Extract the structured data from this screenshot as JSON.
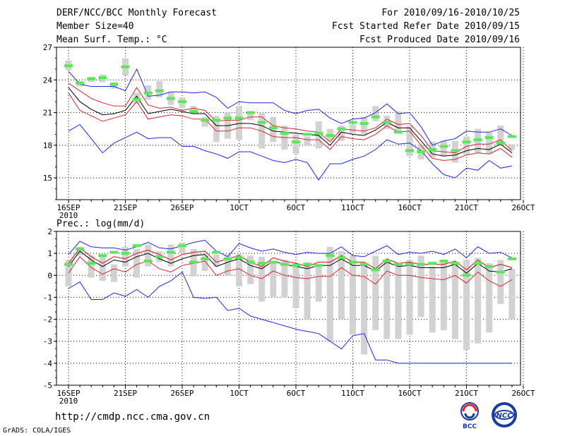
{
  "header": {
    "title": "DERF/NCC/BCC Monthly Forecast",
    "member": "Member Size=40",
    "var_top": "Mean Surf. Temp.: °C",
    "period": "For 2010/09/16-2010/10/25",
    "refer": "Fcst Started Refer Date 2010/09/15",
    "produced": "Fcst Produced Date 2010/09/16"
  },
  "footer": {
    "url": "http://cmdp.ncc.cma.gov.cn",
    "credit": "GrADS: COLA/IGES",
    "logo_bcc": "BCC",
    "logo_ncc": "NCC"
  },
  "chart_data": [
    {
      "type": "line",
      "title": "Mean Surf. Temp.: °C",
      "xlabel": "",
      "ylabel": "°C",
      "ylim": [
        13,
        27
      ],
      "yticks": [
        15,
        18,
        21,
        24,
        27
      ],
      "x_tick_labels": [
        "16SEP",
        "21SEP",
        "26SEP",
        "1OCT",
        "6OCT",
        "11OCT",
        "16OCT",
        "21OCT",
        "26OCT"
      ],
      "x_sub_label": "2010",
      "days": 40,
      "series": [
        {
          "name": "max",
          "color": "#1c28e6",
          "values": [
            24.8,
            23.6,
            23.4,
            23.4,
            23.4,
            23.0,
            25.0,
            22.5,
            22.6,
            22.9,
            22.9,
            22.8,
            22.9,
            22.4,
            21.4,
            22.0,
            21.9,
            21.9,
            21.9,
            21.2,
            20.9,
            21.2,
            21.3,
            20.5,
            20.0,
            20.4,
            20.5,
            21.0,
            21.8,
            20.9,
            21.0,
            19.7,
            18.0,
            18.4,
            18.6,
            19.3,
            19.2,
            19.2,
            19.5,
            18.9
          ]
        },
        {
          "name": "q75",
          "color": "#d8262a",
          "values": [
            23.7,
            23.0,
            22.3,
            21.9,
            21.6,
            21.6,
            23.3,
            21.7,
            21.4,
            21.5,
            21.2,
            21.4,
            21.2,
            20.2,
            20.3,
            20.3,
            20.6,
            20.6,
            19.8,
            19.6,
            19.5,
            19.3,
            19.2,
            18.3,
            19.5,
            19.4,
            19.3,
            19.6,
            20.4,
            19.9,
            20.0,
            18.9,
            17.5,
            17.4,
            17.3,
            17.9,
            18.1,
            18.1,
            18.5,
            17.5
          ]
        },
        {
          "name": "mean",
          "color": "#000000",
          "values": [
            23.3,
            22.0,
            21.3,
            20.8,
            20.9,
            21.2,
            22.5,
            20.9,
            21.1,
            21.3,
            21.1,
            20.9,
            20.9,
            19.8,
            19.8,
            20.0,
            20.0,
            19.8,
            19.3,
            19.2,
            19.1,
            19.0,
            18.9,
            18.0,
            19.2,
            19.0,
            18.9,
            19.4,
            20.1,
            19.6,
            19.6,
            18.4,
            17.2,
            17.0,
            17.1,
            17.5,
            17.7,
            17.6,
            18.1,
            17.3
          ]
        },
        {
          "name": "q25",
          "color": "#d8262a",
          "values": [
            22.8,
            21.2,
            20.7,
            20.2,
            20.5,
            20.8,
            22.0,
            20.4,
            20.6,
            20.8,
            20.7,
            20.4,
            20.4,
            19.3,
            19.3,
            19.6,
            19.6,
            19.3,
            18.8,
            18.7,
            18.7,
            18.5,
            18.5,
            17.6,
            18.8,
            18.6,
            18.5,
            19.0,
            19.8,
            19.2,
            19.3,
            18.0,
            16.8,
            16.6,
            16.7,
            17.1,
            17.3,
            17.2,
            17.7,
            16.9
          ]
        },
        {
          "name": "min",
          "color": "#1c28e6",
          "values": [
            19.3,
            19.9,
            18.6,
            17.3,
            18.2,
            18.7,
            19.2,
            18.6,
            18.7,
            18.7,
            17.9,
            17.9,
            17.5,
            17.2,
            16.8,
            17.4,
            17.4,
            17.0,
            16.6,
            16.4,
            16.7,
            16.4,
            14.8,
            16.3,
            16.3,
            16.7,
            17.0,
            17.6,
            18.5,
            18.1,
            18.2,
            17.5,
            16.3,
            15.3,
            15.0,
            15.9,
            15.7,
            16.6,
            15.9,
            16.1
          ]
        }
      ],
      "obs_bars": [
        [
          24.9,
          25.8
        ],
        [
          23.4,
          23.9
        ],
        [
          23.8,
          24.3
        ],
        [
          23.8,
          24.5
        ],
        [
          23.2,
          23.8
        ],
        [
          24.4,
          26.0
        ],
        [
          21.8,
          22.8
        ],
        [
          22.2,
          23.5
        ],
        [
          22.4,
          23.9
        ],
        [
          21.7,
          22.9
        ],
        [
          21.4,
          22.4
        ],
        [
          20.9,
          21.6
        ],
        [
          19.7,
          20.6
        ],
        [
          18.3,
          20.7
        ],
        [
          18.6,
          21.0
        ],
        [
          18.5,
          21.6
        ],
        [
          20.3,
          21.1
        ],
        [
          17.7,
          21.0
        ],
        [
          18.3,
          20.6
        ],
        [
          17.6,
          19.8
        ],
        [
          17.2,
          19.0
        ],
        [
          18.0,
          18.8
        ],
        [
          17.7,
          20.2
        ],
        [
          18.4,
          19.5
        ],
        [
          18.4,
          19.8
        ],
        [
          19.1,
          19.9
        ],
        [
          19.0,
          20.6
        ],
        [
          20.2,
          21.6
        ],
        [
          19.5,
          20.7
        ],
        [
          19.3,
          21.1
        ],
        [
          17.0,
          19.8
        ],
        [
          16.7,
          18.0
        ],
        [
          16.9,
          18.3
        ],
        [
          17.0,
          18.4
        ],
        [
          16.4,
          18.4
        ],
        [
          17.1,
          18.8
        ],
        [
          17.3,
          19.5
        ],
        [
          17.2,
          19.2
        ],
        [
          18.0,
          19.8
        ],
        [
          17.6,
          18.1
        ]
      ],
      "forecast_marks": [
        25.3,
        23.7,
        24.1,
        24.2,
        23.6,
        25.2,
        22.2,
        22.8,
        23.0,
        22.3,
        22.0,
        21.1,
        20.3,
        20.3,
        20.5,
        20.5,
        21.0,
        20.1,
        19.6,
        19.1,
        18.3,
        19.0,
        19.1,
        18.9,
        19.5,
        20.1,
        20.0,
        20.6,
        20.1,
        19.2,
        17.5,
        17.4,
        17.6,
        17.9,
        17.5,
        18.3,
        18.5,
        18.7,
        18.2,
        18.8
      ]
    },
    {
      "type": "line",
      "title": "Prec.: log(mm/d)",
      "xlabel": "",
      "ylabel": "log(mm/d)",
      "ylim": [
        -5,
        2
      ],
      "yticks": [
        -5,
        -4,
        -3,
        -2,
        -1,
        0,
        1,
        2
      ],
      "x_tick_labels": [
        "16SEP",
        "21SEP",
        "26SEP",
        "1OCT",
        "6OCT",
        "11OCT",
        "16OCT",
        "21OCT",
        "26OCT"
      ],
      "x_sub_label": "2010",
      "days": 40,
      "series": [
        {
          "name": "max",
          "color": "#1c28e6",
          "values": [
            0.95,
            1.55,
            1.3,
            1.25,
            1.25,
            1.15,
            1.3,
            1.5,
            1.25,
            1.2,
            1.35,
            1.5,
            1.6,
            1.1,
            0.85,
            1.45,
            1.25,
            1.1,
            1.2,
            1.05,
            0.95,
            1.05,
            1.0,
            1.0,
            1.3,
            0.9,
            0.85,
            1.1,
            1.35,
            0.95,
            1.05,
            1.0,
            1.1,
            0.95,
            1.2,
            0.8,
            1.3,
            1.0,
            1.05,
            0.8
          ]
        },
        {
          "name": "q75",
          "color": "#d8262a",
          "values": [
            0.55,
            1.25,
            0.85,
            0.55,
            0.85,
            0.75,
            1.0,
            1.15,
            0.95,
            0.7,
            0.95,
            1.05,
            1.1,
            0.6,
            0.75,
            0.9,
            0.6,
            0.4,
            0.8,
            0.65,
            0.55,
            0.4,
            0.6,
            0.6,
            0.9,
            0.6,
            0.6,
            0.3,
            0.75,
            0.55,
            0.6,
            0.5,
            0.5,
            0.5,
            0.65,
            0.25,
            0.7,
            0.35,
            0.5,
            0.35
          ]
        },
        {
          "name": "mean",
          "color": "#000000",
          "values": [
            0.4,
            1.1,
            0.7,
            0.4,
            0.7,
            0.6,
            0.85,
            1.0,
            0.75,
            0.55,
            0.75,
            0.9,
            0.95,
            0.4,
            0.6,
            0.75,
            0.45,
            0.3,
            0.65,
            0.5,
            0.4,
            0.3,
            0.45,
            0.45,
            0.75,
            0.45,
            0.45,
            0.2,
            0.6,
            0.4,
            0.45,
            0.35,
            0.35,
            0.35,
            0.5,
            0.1,
            0.55,
            0.2,
            0.15,
            0.3
          ]
        },
        {
          "name": "q25",
          "color": "#d8262a",
          "values": [
            0.1,
            0.85,
            0.35,
            0.05,
            0.3,
            0.15,
            0.5,
            0.65,
            0.3,
            0.15,
            0.45,
            0.55,
            0.65,
            0.0,
            0.2,
            0.3,
            0.0,
            -0.15,
            0.2,
            0.0,
            -0.1,
            -0.15,
            -0.05,
            -0.05,
            0.35,
            0.0,
            -0.05,
            -0.4,
            0.2,
            0.0,
            0.0,
            -0.1,
            -0.15,
            -0.2,
            0.0,
            -0.35,
            0.15,
            -0.25,
            -0.5,
            -0.2
          ]
        },
        {
          "name": "min",
          "color": "#1c28e6",
          "values": [
            -0.6,
            -0.3,
            -1.1,
            -1.1,
            -0.8,
            -0.95,
            -0.65,
            -1.0,
            -0.5,
            -0.25,
            0.15,
            -1.0,
            -1.05,
            -1.0,
            -1.6,
            -1.5,
            -1.85,
            -2.0,
            -2.15,
            -2.3,
            -2.45,
            -2.55,
            -2.65,
            -3.0,
            -3.35,
            -2.75,
            -2.65,
            -3.85,
            -3.85,
            -4.0,
            -4.0,
            -4.0,
            -4.0,
            -4.0,
            -4.0,
            -4.0,
            -4.0,
            -4.0,
            -4.0,
            -4.0
          ]
        },
        {
          "name": "upper_q",
          "color": "#d8262a",
          "values": [
            0.55,
            1.25,
            0.85,
            0.55,
            0.85,
            0.75,
            1.0,
            1.15,
            0.95,
            0.7,
            0.95,
            1.05,
            1.1,
            0.6,
            0.75,
            0.9,
            0.6,
            0.4,
            0.8,
            0.65,
            0.55,
            0.4,
            0.6,
            0.6,
            0.9,
            0.6,
            0.6,
            0.3,
            0.75,
            0.55,
            0.6,
            0.5,
            0.5,
            0.5,
            0.65,
            0.25,
            0.7,
            0.35,
            0.5,
            0.35
          ]
        }
      ],
      "obs_bars": [
        [
          -0.5,
          0.7
        ],
        [
          0.9,
          1.3
        ],
        [
          -0.1,
          0.9
        ],
        [
          -0.25,
          0.85
        ],
        [
          -0.3,
          0.5
        ],
        [
          0.4,
          1.3
        ],
        [
          -0.1,
          1.2
        ],
        [
          0.4,
          1.4
        ],
        [
          0.6,
          1.1
        ],
        [
          0.4,
          1.4
        ],
        [
          1.0,
          1.5
        ],
        [
          -0.05,
          1.2
        ],
        [
          0.2,
          0.9
        ],
        [
          0.4,
          0.95
        ],
        [
          0.0,
          0.95
        ],
        [
          -0.5,
          0.95
        ],
        [
          -0.4,
          0.9
        ],
        [
          -1.2,
          0.85
        ],
        [
          -1.0,
          0.6
        ],
        [
          -1.0,
          0.7
        ],
        [
          -1.5,
          0.55
        ],
        [
          -2.0,
          0.6
        ],
        [
          -1.2,
          0.5
        ],
        [
          -3.0,
          1.3
        ],
        [
          -2.0,
          1.1
        ],
        [
          -2.7,
          0.9
        ],
        [
          -3.6,
          0.5
        ],
        [
          -2.5,
          0.9
        ],
        [
          -2.9,
          0.7
        ],
        [
          -2.9,
          0.4
        ],
        [
          -2.7,
          0.7
        ],
        [
          -1.9,
          0.9
        ],
        [
          -2.6,
          0.4
        ],
        [
          -2.5,
          0.7
        ],
        [
          -2.9,
          0.6
        ],
        [
          -3.4,
          0.7
        ],
        [
          -3.1,
          0.8
        ],
        [
          -2.6,
          0.55
        ],
        [
          -1.3,
          0.7
        ],
        [
          -2.0,
          0.3
        ]
      ],
      "forecast_marks": [
        0.5,
        1.2,
        0.55,
        0.9,
        1.05,
        1.0,
        1.35,
        0.65,
        0.85,
        1.05,
        1.35,
        0.6,
        0.75,
        1.05,
        0.75,
        0.8,
        0.6,
        0.55,
        0.6,
        0.5,
        0.45,
        0.5,
        0.45,
        0.9,
        0.8,
        0.6,
        0.5,
        0.25,
        0.65,
        0.5,
        0.5,
        0.5,
        0.55,
        0.65,
        0.55,
        0.0,
        0.55,
        0.4,
        0.15,
        0.75
      ]
    }
  ]
}
